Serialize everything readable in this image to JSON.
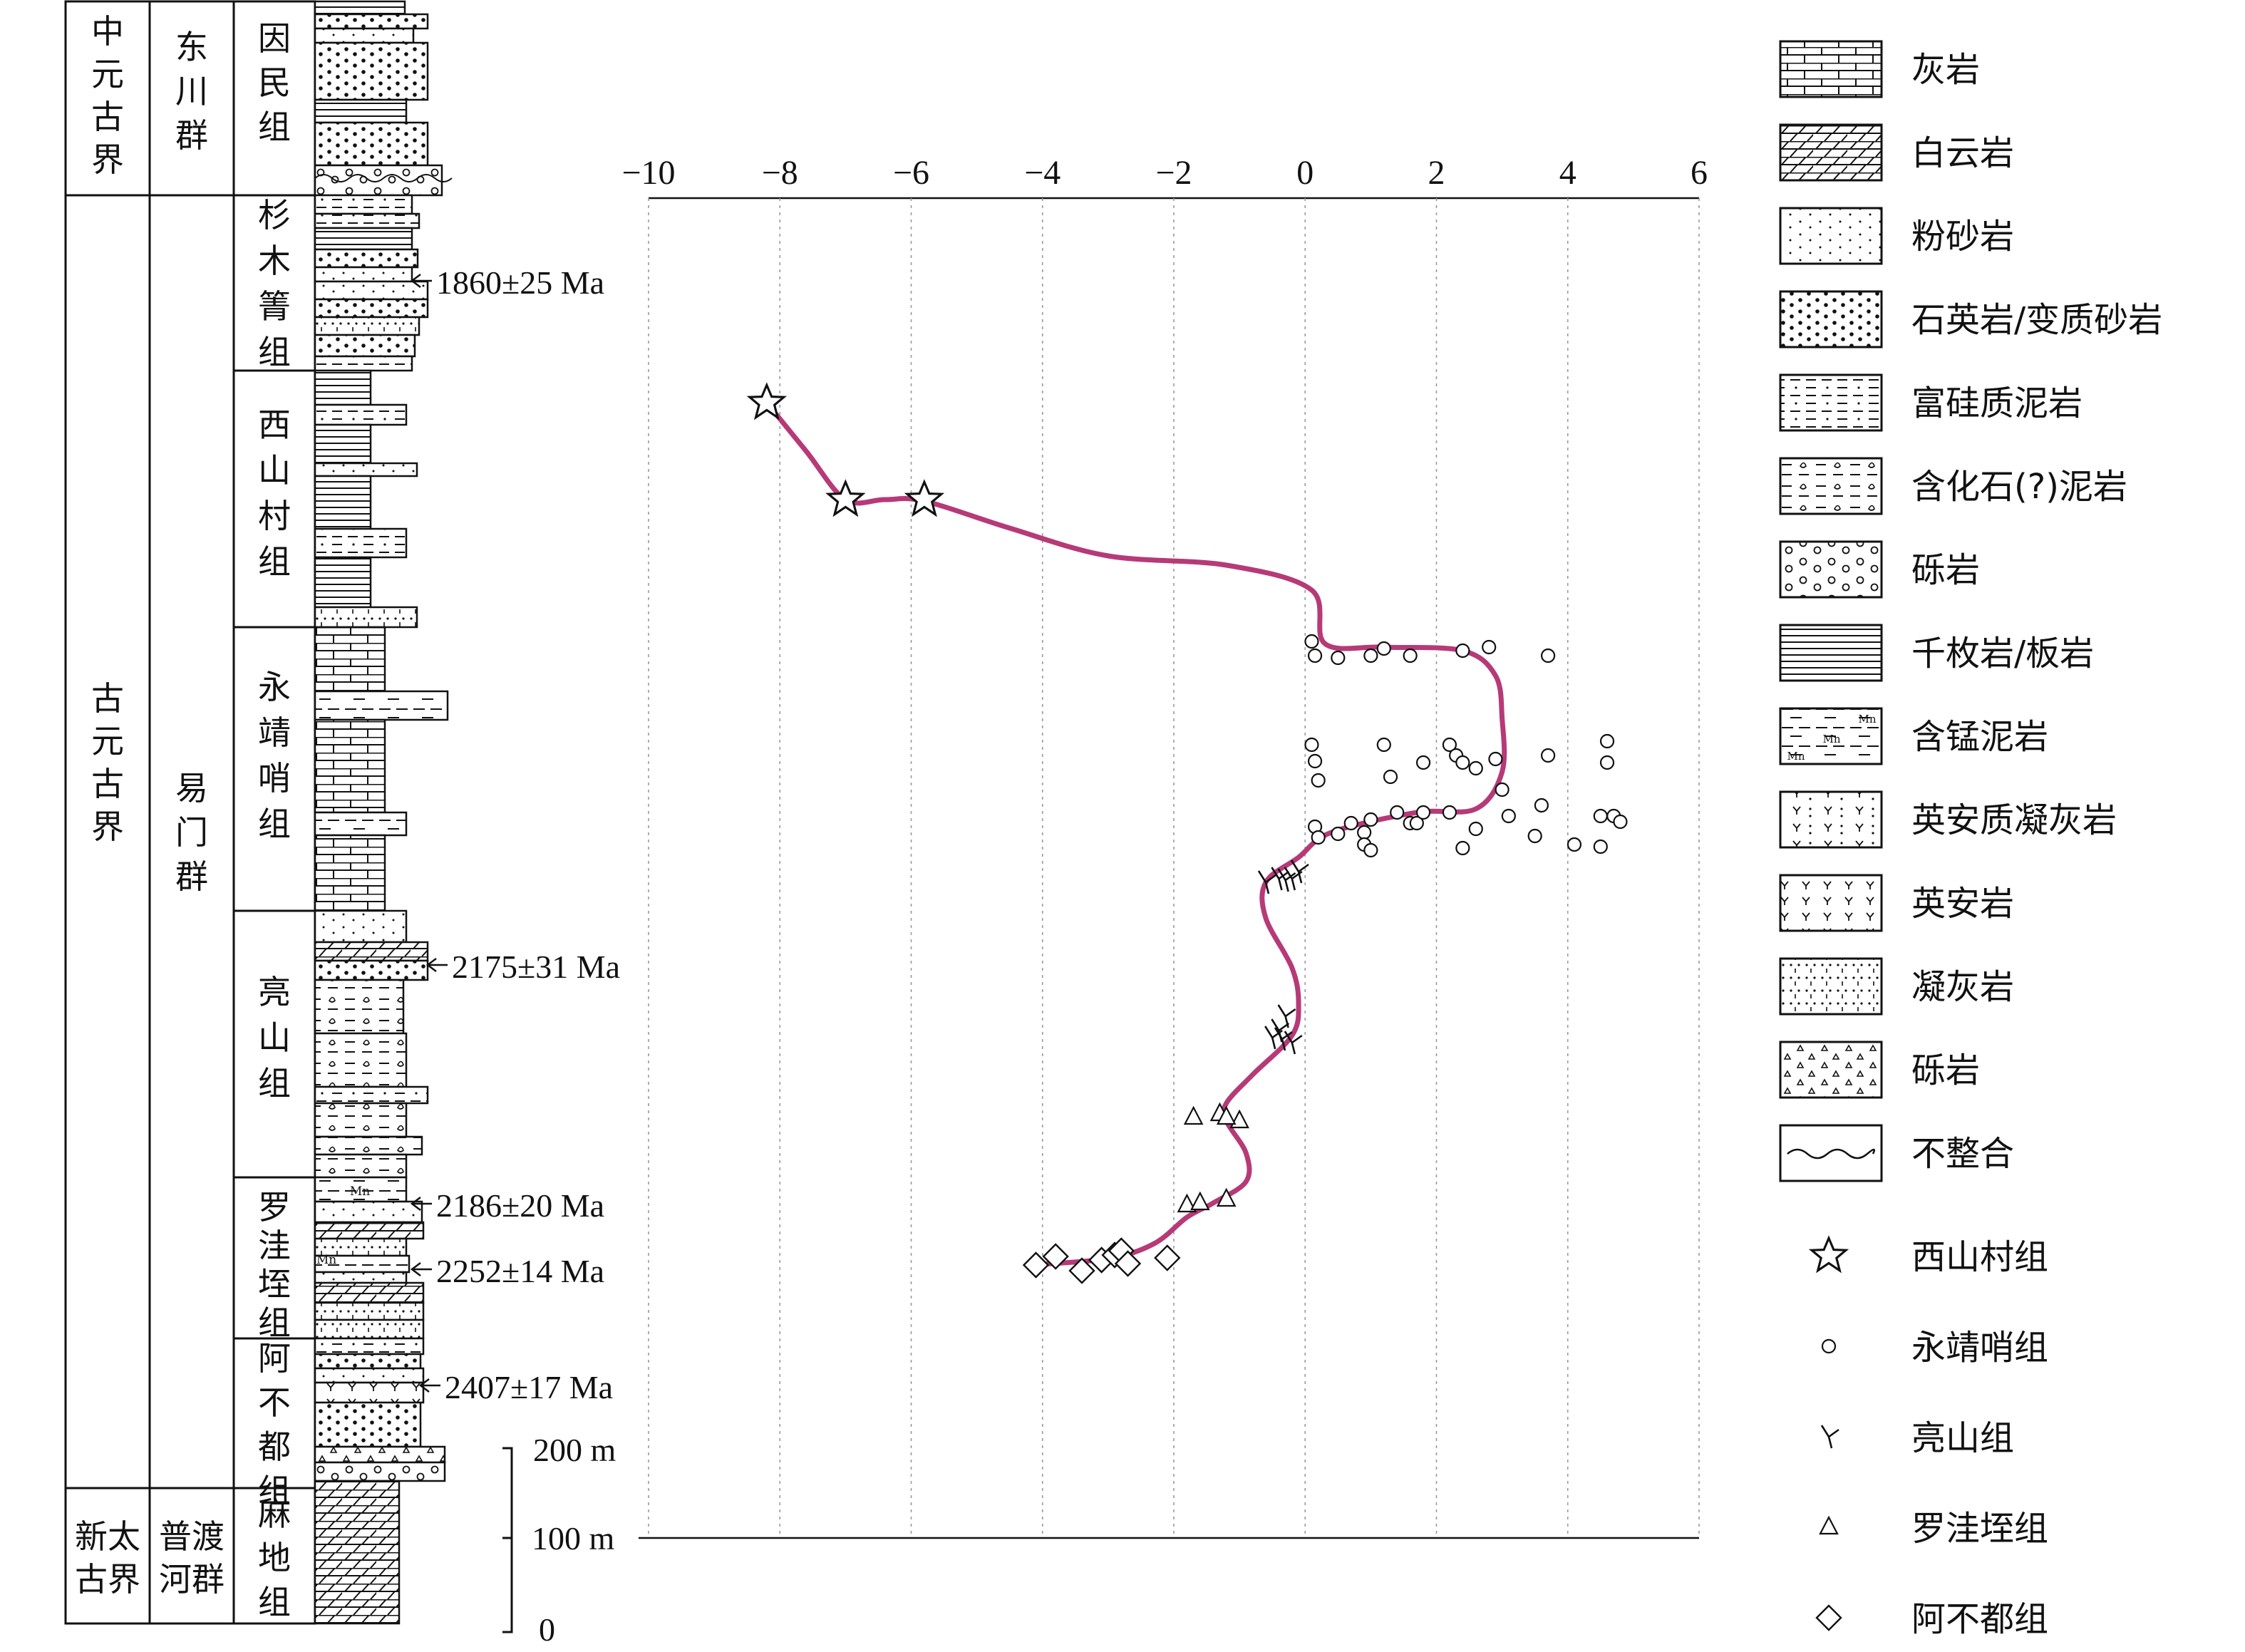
{
  "strat_table": {
    "eras": [
      "中元古界",
      "古元古界",
      "新太古界"
    ],
    "groups": [
      "东川群",
      "易门群",
      "普渡河群"
    ],
    "formations": [
      "因民组",
      "杉木箐组",
      "西山村组",
      "永靖哨组",
      "亮山组",
      "罗洼垤组",
      "阿不都组",
      "麻地组"
    ],
    "ages": [
      "1860±25 Ma",
      "2175±31 Ma",
      "2186±20 Ma",
      "2252±14 Ma",
      "2407±17 Ma"
    ],
    "mn_label": "Mn"
  },
  "scale_bar": {
    "labels": [
      "200 m",
      "100 m",
      "0"
    ]
  },
  "chart_data": {
    "type": "scatter",
    "title": "",
    "xlabel": "",
    "ylabel": "",
    "xlim": [
      -10,
      6
    ],
    "x_ticks": [
      -10,
      -8,
      -6,
      -4,
      -2,
      0,
      2,
      4,
      6
    ],
    "x_tick_labels": [
      "−10",
      "−8",
      "−6",
      "−4",
      "−2",
      "0",
      "2",
      "4",
      "6"
    ],
    "grid": "vertical dashed",
    "y_units": "relative stratigraphic height, 0 = base",
    "series": [
      {
        "name": "西山村组",
        "marker": "star",
        "points": [
          [
            -8.2,
            1593
          ],
          [
            -7.0,
            1457
          ],
          [
            -5.8,
            1457
          ]
        ]
      },
      {
        "name": "永靖哨组",
        "marker": "circle",
        "points": [
          [
            0.1,
            1258
          ],
          [
            0.15,
            1238
          ],
          [
            0.5,
            1235
          ],
          [
            1.0,
            1238
          ],
          [
            1.2,
            1248
          ],
          [
            1.6,
            1238
          ],
          [
            2.4,
            1245
          ],
          [
            2.8,
            1250
          ],
          [
            3.7,
            1238
          ],
          [
            0.1,
            1113
          ],
          [
            1.2,
            1113
          ],
          [
            2.2,
            1113
          ],
          [
            3.7,
            1098
          ],
          [
            4.6,
            1118
          ],
          [
            0.15,
            1090
          ],
          [
            0.2,
            1063
          ],
          [
            1.3,
            1068
          ],
          [
            1.8,
            1088
          ],
          [
            2.3,
            1098
          ],
          [
            2.4,
            1088
          ],
          [
            2.6,
            1080
          ],
          [
            2.9,
            1093
          ],
          [
            3.0,
            1050
          ],
          [
            4.6,
            1088
          ],
          [
            0.15,
            998
          ],
          [
            0.2,
            983
          ],
          [
            0.5,
            988
          ],
          [
            0.7,
            1003
          ],
          [
            0.9,
            990
          ],
          [
            1.0,
            1008
          ],
          [
            1.4,
            1018
          ],
          [
            1.6,
            1003
          ],
          [
            1.7,
            1003
          ],
          [
            1.8,
            1018
          ],
          [
            2.2,
            1018
          ],
          [
            2.6,
            995
          ],
          [
            3.1,
            1013
          ],
          [
            3.5,
            985
          ],
          [
            3.6,
            1028
          ],
          [
            4.1,
            973
          ],
          [
            4.5,
            1013
          ],
          [
            4.7,
            1013
          ],
          [
            4.8,
            1005
          ],
          [
            2.4,
            968
          ],
          [
            0.9,
            973
          ],
          [
            1.0,
            965
          ],
          [
            4.5,
            970
          ]
        ]
      },
      {
        "name": "亮山组",
        "marker": "tick",
        "points": [
          [
            -0.6,
            920
          ],
          [
            -0.4,
            925
          ],
          [
            -0.2,
            925
          ],
          [
            -0.1,
            935
          ],
          [
            -0.3,
            923
          ],
          [
            -0.3,
            732
          ],
          [
            -0.5,
            702
          ],
          [
            -0.35,
            700
          ],
          [
            -0.2,
            695
          ],
          [
            -0.4,
            712
          ]
        ]
      },
      {
        "name": "罗洼垤组",
        "marker": "triangle",
        "points": [
          [
            -1.7,
            590
          ],
          [
            -1.3,
            595
          ],
          [
            -1.0,
            585
          ],
          [
            -1.2,
            590
          ],
          [
            -1.8,
            467
          ],
          [
            -1.6,
            470
          ],
          [
            -1.2,
            475
          ]
        ]
      },
      {
        "name": "阿不都组",
        "marker": "diamond",
        "points": [
          [
            -4.1,
            383
          ],
          [
            -3.8,
            395
          ],
          [
            -3.4,
            375
          ],
          [
            -3.1,
            390
          ],
          [
            -2.9,
            397
          ],
          [
            -2.8,
            403
          ],
          [
            -2.7,
            385
          ],
          [
            -2.1,
            393
          ]
        ]
      }
    ],
    "trend_curve": {
      "color": "#b63a78",
      "points": [
        [
          -8.2,
          1593
        ],
        [
          -7.6,
          1525
        ],
        [
          -7.0,
          1457
        ],
        [
          -6.4,
          1457
        ],
        [
          -5.8,
          1455
        ],
        [
          -4.5,
          1417
        ],
        [
          -3.0,
          1378
        ],
        [
          -1.2,
          1365
        ],
        [
          0.1,
          1330
        ],
        [
          0.3,
          1255
        ],
        [
          1.2,
          1250
        ],
        [
          2.4,
          1245
        ],
        [
          2.9,
          1210
        ],
        [
          3.0,
          1150
        ],
        [
          3.0,
          1075
        ],
        [
          2.6,
          1023
        ],
        [
          1.7,
          1018
        ],
        [
          0.4,
          990
        ],
        [
          -0.1,
          955
        ],
        [
          -0.6,
          920
        ],
        [
          -0.6,
          870
        ],
        [
          -0.2,
          800
        ],
        [
          -0.1,
          750
        ],
        [
          -0.2,
          705
        ],
        [
          -0.8,
          650
        ],
        [
          -1.2,
          610
        ],
        [
          -1.2,
          585
        ],
        [
          -0.9,
          540
        ],
        [
          -0.9,
          500
        ],
        [
          -1.4,
          470
        ],
        [
          -1.8,
          450
        ],
        [
          -2.3,
          413
        ],
        [
          -3.0,
          392
        ],
        [
          -4.2,
          383
        ]
      ]
    }
  },
  "legend": {
    "lithology": [
      "灰岩",
      "白云岩",
      "粉砂岩",
      "石英岩/变质砂岩",
      "富硅质泥岩",
      "含化石(?)泥岩",
      "砾岩",
      "千枚岩/板岩",
      "含锰泥岩",
      "英安质凝灰岩",
      "英安岩",
      "凝灰岩",
      "砾岩",
      "不整合"
    ],
    "symbols": [
      "西山村组",
      "永靖哨组",
      "亮山组",
      "罗洼垤组",
      "阿不都组"
    ]
  },
  "colors": {
    "curve": "#b63a78",
    "ink": "#111111",
    "grid": "#aaaaaa"
  }
}
